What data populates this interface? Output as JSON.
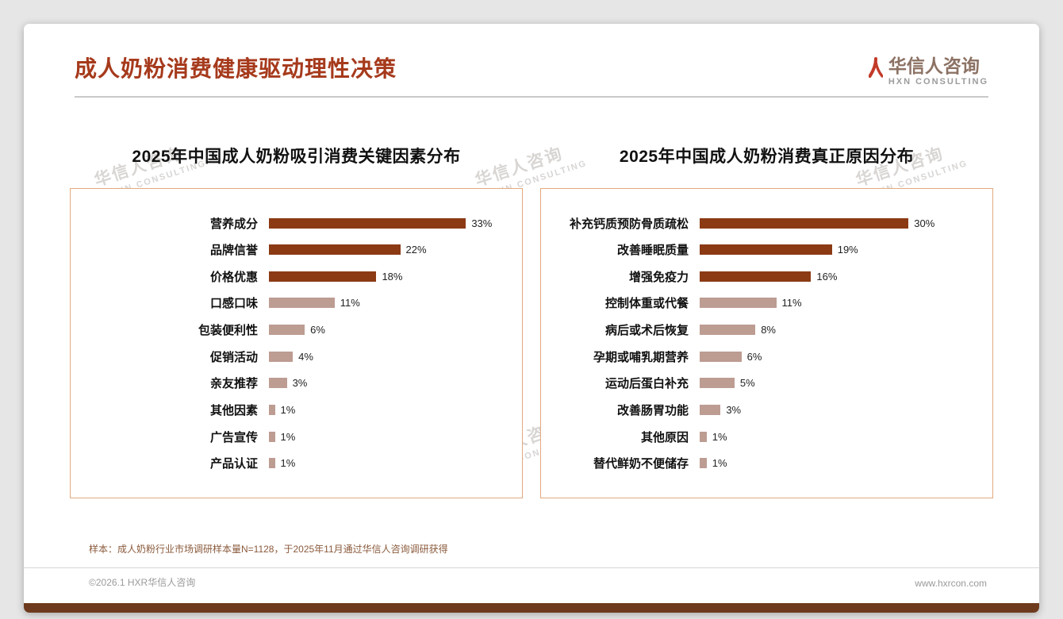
{
  "page": {
    "title": "成人奶粉消费健康驱动理性决策",
    "logo": {
      "name": "华信人咨询",
      "subtitle": "HXN CONSULTING"
    },
    "watermark": {
      "line1": "华信人咨询",
      "line2": "HXN CONSULTING"
    },
    "footnote": "样本：成人奶粉行业市场调研样本量N=1128，于2025年11月通过华信人咨询调研获得",
    "copyright": "©2026.1 HXR华信人咨询",
    "website": "www.hxrcon.com"
  },
  "colors": {
    "title": "#A63A1C",
    "bar_primary": "#8B3A14",
    "bar_secondary": "#BD9C92",
    "panel_border": "#E3AA7F",
    "footnote_text": "#8A5A3C",
    "footer_bar": "#6E3A1D"
  },
  "chart_data": [
    {
      "type": "bar",
      "orientation": "horizontal",
      "title": "2025年中国成人奶粉吸引消费关键因素分布",
      "categories": [
        "营养成分",
        "品牌信誉",
        "价格优惠",
        "口感口味",
        "包装便利性",
        "促销活动",
        "亲友推荐",
        "其他因素",
        "广告宣传",
        "产品认证"
      ],
      "values": [
        33,
        22,
        18,
        11,
        6,
        4,
        3,
        1,
        1,
        1
      ],
      "unit": "%",
      "xlim": [
        0,
        40
      ],
      "primary_count": 3,
      "grid": false,
      "legend": false,
      "value_labels": "end-of-bar"
    },
    {
      "type": "bar",
      "orientation": "horizontal",
      "title": "2025年中国成人奶粉消费真正原因分布",
      "categories": [
        "补充钙质预防骨质疏松",
        "改善睡眠质量",
        "增强免疫力",
        "控制体重或代餐",
        "病后或术后恢复",
        "孕期或哺乳期营养",
        "运动后蛋白补充",
        "改善肠胃功能",
        "其他原因",
        "替代鲜奶不便储存"
      ],
      "values": [
        30,
        19,
        16,
        11,
        8,
        6,
        5,
        3,
        1,
        1
      ],
      "unit": "%",
      "xlim": [
        0,
        40
      ],
      "primary_count": 3,
      "grid": false,
      "legend": false,
      "value_labels": "end-of-bar"
    }
  ]
}
